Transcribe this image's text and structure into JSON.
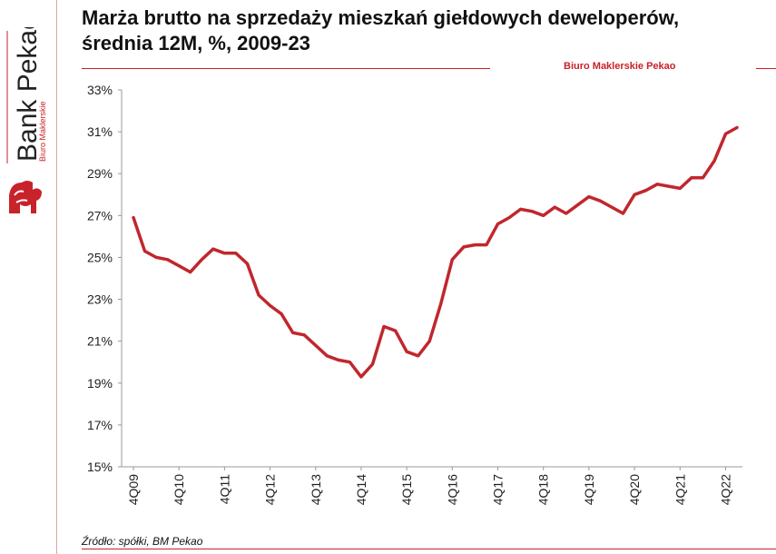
{
  "header": {
    "title_line1": "Marża brutto na sprzedaży mieszkań giełdowych deweloperów,",
    "title_line2": "średnia 12M, %, 2009-23",
    "broker": "Biuro Maklerskie Pekao"
  },
  "brand": {
    "name": "Bank Pekao",
    "subname": "Biuro Maklerskie",
    "logo_icon": "pekao-bison-logo"
  },
  "footer": {
    "source": "Źródło: spółki, BM Pekao"
  },
  "colors": {
    "accent": "#c8222a",
    "line": "#c0272d"
  },
  "chart_data": {
    "type": "line",
    "title": "Marża brutto na sprzedaży mieszkań giełdowych deweloperów, średnia 12M, %, 2009-23",
    "xlabel": "",
    "ylabel": "",
    "ylim": [
      15,
      33
    ],
    "yticks": [
      "15%",
      "17%",
      "19%",
      "21%",
      "23%",
      "25%",
      "27%",
      "29%",
      "31%",
      "33%"
    ],
    "ytick_values": [
      15,
      17,
      19,
      21,
      23,
      25,
      27,
      29,
      31,
      33
    ],
    "xtick_labels": [
      "4Q09",
      "4Q10",
      "4Q11",
      "4Q12",
      "4Q13",
      "4Q14",
      "4Q15",
      "4Q16",
      "4Q17",
      "4Q18",
      "4Q19",
      "4Q20",
      "4Q21",
      "4Q22"
    ],
    "grid": false,
    "legend": "none",
    "series": [
      {
        "values": [
          26.9,
          25.3,
          25.0,
          24.9,
          24.6,
          24.3,
          24.9,
          25.4,
          25.2,
          25.2,
          24.7,
          23.2,
          22.7,
          22.3,
          21.4,
          21.3,
          20.8,
          20.3,
          20.1,
          20.0,
          19.3,
          19.9,
          21.7,
          21.5,
          20.5,
          20.3,
          21.0,
          22.8,
          24.9,
          25.5,
          25.6,
          25.6,
          26.6,
          26.9,
          27.3,
          27.2,
          27.0,
          27.4,
          27.1,
          27.5,
          27.9,
          27.7,
          27.4,
          27.1,
          28.0,
          28.2,
          28.5,
          28.4,
          28.3,
          28.8,
          28.8,
          29.6,
          30.9,
          31.2
        ]
      }
    ]
  }
}
